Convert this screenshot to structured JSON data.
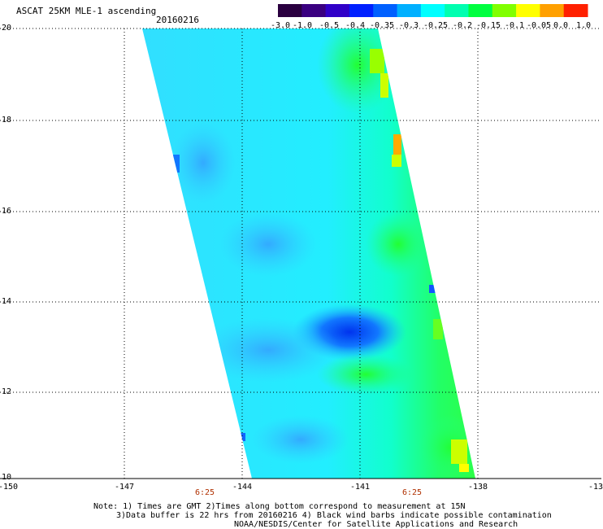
{
  "title": "ASCAT 25KM MLE-1 ascending",
  "date": "20160216",
  "colorbar": {
    "tick_labels": [
      "-3.0",
      "-1.0",
      "-0.5",
      "-0.4",
      "-0.35",
      "-0.3",
      "-0.25",
      "-0.2",
      "-0.15",
      "-0.1",
      "-0.05",
      "0.0",
      "1.0"
    ],
    "colors": [
      "#2a0040",
      "#3a0080",
      "#3000c8",
      "#0020ff",
      "#0060ff",
      "#00b0ff",
      "#00ffff",
      "#00ffb0",
      "#00ff40",
      "#80ff00",
      "#ffff00",
      "#ffa000",
      "#ff2000"
    ]
  },
  "axes": {
    "y_ticks": [
      "20",
      "18",
      "16",
      "14",
      "12",
      "10"
    ],
    "x_ticks": [
      "-150",
      "-147",
      "-144",
      "-141",
      "-138",
      "-13"
    ],
    "time_labels": [
      "6:25",
      "6:25"
    ],
    "lat_range": [
      10,
      20
    ],
    "lon_range": [
      -150,
      -135
    ]
  },
  "notes": {
    "line1": "Note: 1) Times are GMT 2)Times along bottom correspond to measurement at 15N",
    "line2": "3)Data buffer is 22 hrs from 20160216 4) Black wind barbs indicate possible contamination",
    "line3": "NOAA/NESDIS/Center for Satellite Applications and Research"
  }
}
